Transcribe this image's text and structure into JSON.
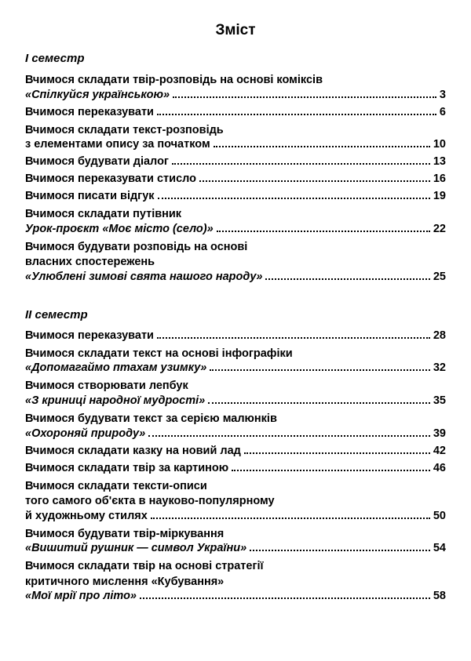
{
  "title": "Зміст",
  "sections": [
    {
      "header": "І семестр",
      "entries": [
        {
          "lines": [
            "Вчимося складати твір-розповідь на основі коміксів"
          ],
          "last": "«Спілкуйся українською» ",
          "last_italic": true,
          "page": "3"
        },
        {
          "lines": [],
          "last": "Вчимося переказувати",
          "last_italic": false,
          "page": "6"
        },
        {
          "lines": [
            "Вчимося складати текст-розповідь"
          ],
          "last": "з елементами опису за початком ",
          "last_italic": false,
          "page": "10"
        },
        {
          "lines": [],
          "last": "Вчимося будувати діалог",
          "last_italic": false,
          "page": "13"
        },
        {
          "lines": [],
          "last": "Вчимося переказувати стисло ",
          "last_italic": false,
          "page": "16"
        },
        {
          "lines": [],
          "last": "Вчимося писати відгук ",
          "last_italic": false,
          "page": "19"
        },
        {
          "lines": [
            "Вчимося складати путівник"
          ],
          "last": "Урок-проєкт «Моє місто (село)» ",
          "last_italic": true,
          "page": "22"
        },
        {
          "lines": [
            "Вчимося будувати розповідь на основі",
            "власних спостережень"
          ],
          "last": "«Улюблені зимові свята нашого народу» ",
          "last_italic": true,
          "page": "25"
        }
      ]
    },
    {
      "header": "ІІ семестр",
      "entries": [
        {
          "lines": [],
          "last": "Вчимося переказувати ",
          "last_italic": false,
          "page": "28"
        },
        {
          "lines": [
            "Вчимося складати текст на основі інфографіки"
          ],
          "last": "«Допомагаймо птахам узимку» ",
          "last_italic": true,
          "page": "32"
        },
        {
          "lines": [
            "Вчимося створювати лепбук"
          ],
          "last": "«З криниці народної мудрості» ",
          "last_italic": true,
          "page": "35"
        },
        {
          "lines": [
            "Вчимося будувати текст за серією малюнків"
          ],
          "last": "«Охороняй природу» ",
          "last_italic": true,
          "page": "39"
        },
        {
          "lines": [],
          "last": "Вчимося складати казку на новий лад ",
          "last_italic": false,
          "page": "42"
        },
        {
          "lines": [],
          "last": "Вчимося складати твір за картиною ",
          "last_italic": false,
          "page": "46"
        },
        {
          "lines": [
            "Вчимося складати тексти-описи",
            "того самого об'єкта в науково-популярному"
          ],
          "last": "й художньому стилях ",
          "last_italic": false,
          "page": "50"
        },
        {
          "lines": [
            "Вчимося будувати твір-міркування"
          ],
          "last": "«Вишитий рушник — символ України» ",
          "last_italic": true,
          "page": "54"
        },
        {
          "lines": [
            "Вчимося складати твір на основі стратегії",
            "критичного мислення «Кубування»"
          ],
          "last": "«Мої мрії про літо» ",
          "last_italic": true,
          "page": "58"
        }
      ]
    }
  ]
}
